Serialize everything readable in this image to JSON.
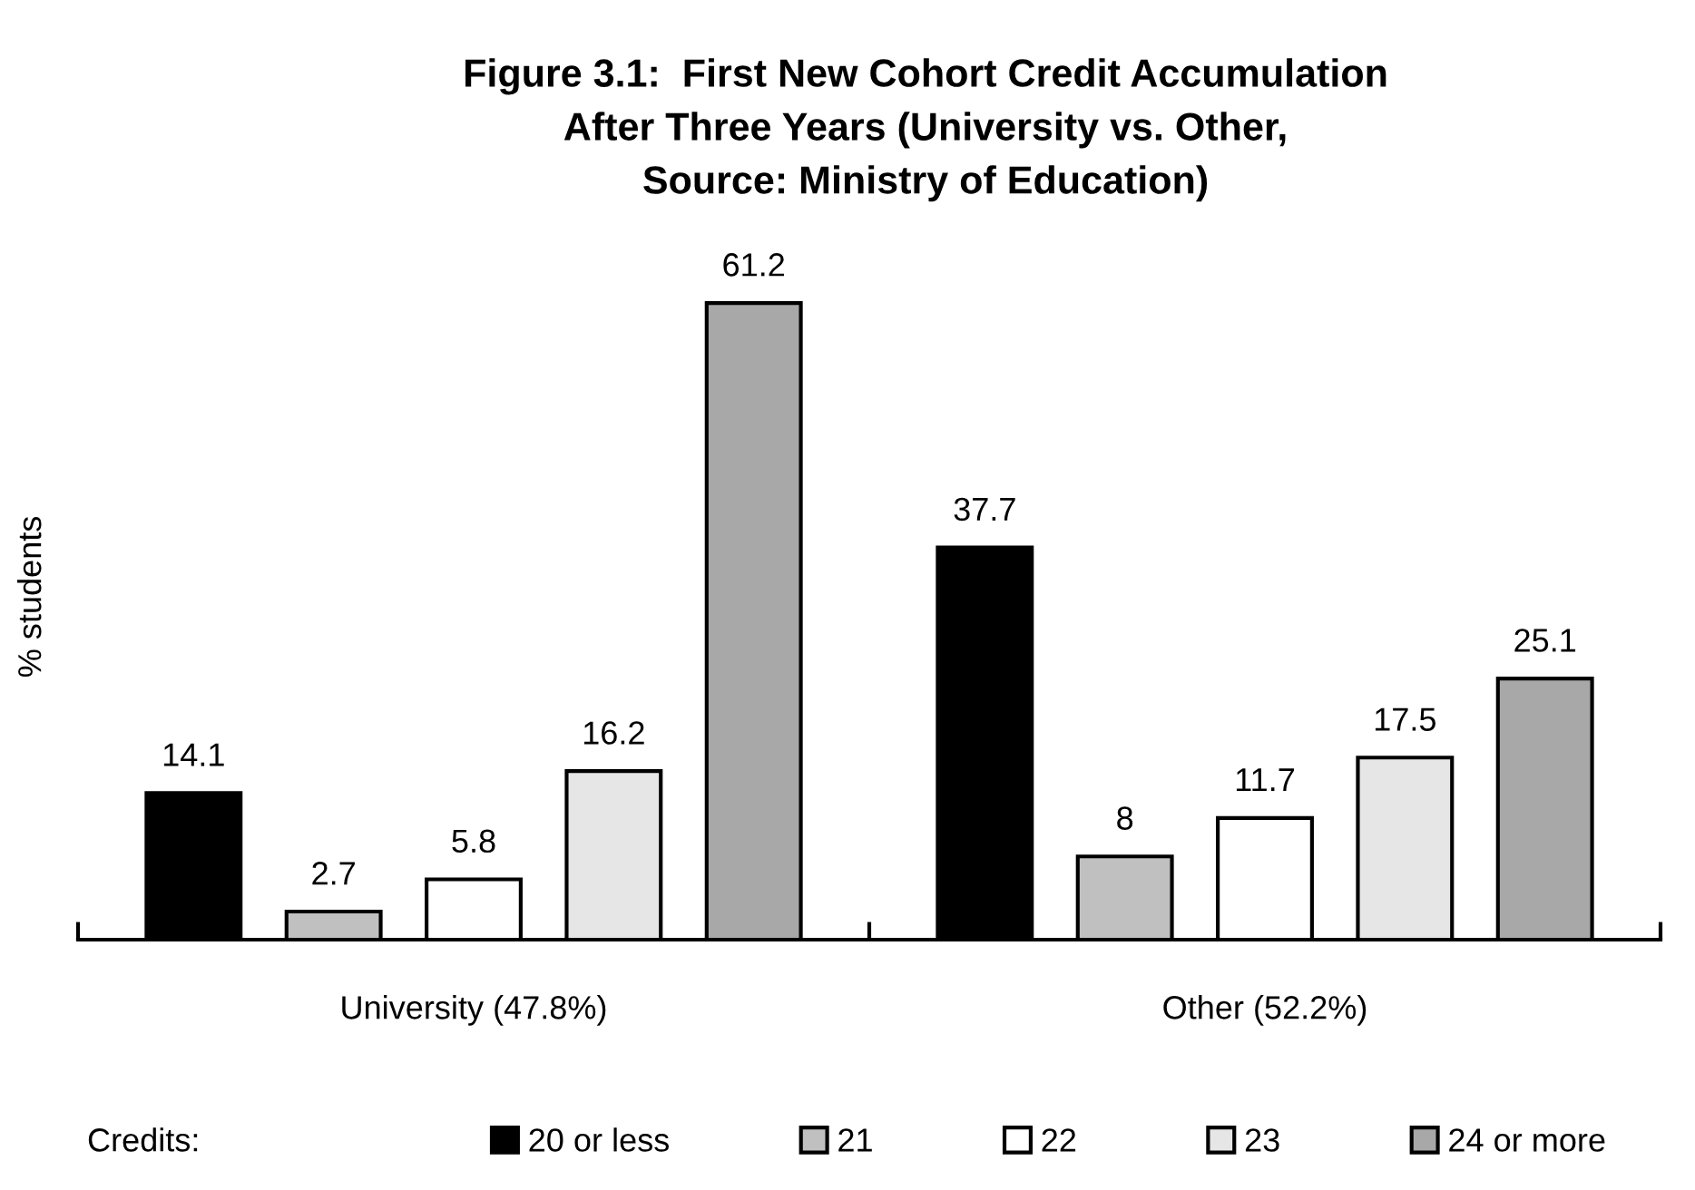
{
  "chart_data": {
    "type": "bar",
    "title": "Figure 3.1:  First New Cohort Credit Accumulation\nAfter Three Years (University vs. Other,\nSource: Ministry of Education)",
    "ylabel": "% students",
    "legend_title": "Credits:",
    "categories": [
      "University (47.8%)",
      "Other (52.2%)"
    ],
    "series": [
      {
        "name": "20 or less",
        "color": "#000000",
        "values": [
          14.1,
          37.7
        ]
      },
      {
        "name": "21",
        "color": "#c0c0c0",
        "values": [
          2.7,
          8
        ]
      },
      {
        "name": "22",
        "color": "#ffffff",
        "values": [
          5.8,
          11.7
        ]
      },
      {
        "name": "23",
        "color": "#e6e6e6",
        "values": [
          16.2,
          17.5
        ]
      },
      {
        "name": "24 or more",
        "color": "#a8a8a8",
        "values": [
          61.2,
          25.1
        ]
      }
    ],
    "data_labels": true,
    "legend": "bottom"
  }
}
